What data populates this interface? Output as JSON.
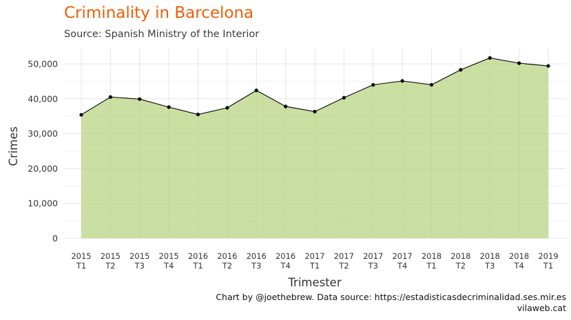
{
  "colors": {
    "title": "#f25c05",
    "area_fill": "#b5d27a",
    "line": "#000000",
    "grid": "#e6e6e6"
  },
  "chart_data": {
    "type": "area",
    "title": "Criminality in Barcelona",
    "subtitle": "Source: Spanish Ministry of the Interior",
    "xlabel": "Trimester",
    "ylabel": "Crimes",
    "ylim": [
      0,
      54000
    ],
    "yticks": [
      0,
      10000,
      20000,
      30000,
      40000,
      50000
    ],
    "ytick_labels": [
      "0",
      "10,000",
      "20,000",
      "30,000",
      "40,000",
      "50,000"
    ],
    "grid": true,
    "categories": [
      {
        "year": "2015",
        "quarter": "T1"
      },
      {
        "year": "2015",
        "quarter": "T2"
      },
      {
        "year": "2015",
        "quarter": "T3"
      },
      {
        "year": "2015",
        "quarter": "T4"
      },
      {
        "year": "2016",
        "quarter": "T1"
      },
      {
        "year": "2016",
        "quarter": "T2"
      },
      {
        "year": "2016",
        "quarter": "T3"
      },
      {
        "year": "2016",
        "quarter": "T4"
      },
      {
        "year": "2017",
        "quarter": "T1"
      },
      {
        "year": "2017",
        "quarter": "T2"
      },
      {
        "year": "2017",
        "quarter": "T3"
      },
      {
        "year": "2017",
        "quarter": "T4"
      },
      {
        "year": "2018",
        "quarter": "T1"
      },
      {
        "year": "2018",
        "quarter": "T2"
      },
      {
        "year": "2018",
        "quarter": "T3"
      },
      {
        "year": "2018",
        "quarter": "T4"
      },
      {
        "year": "2019",
        "quarter": "T1"
      }
    ],
    "values": [
      35400,
      40500,
      39900,
      37600,
      35500,
      37400,
      42400,
      37800,
      36300,
      40300,
      44000,
      45100,
      44000,
      48300,
      51700,
      50200,
      49400
    ],
    "caption_lines": [
      "Chart by @joethebrew. Data source: https://estadisticasdecriminalidad.ses.mir.es",
      "vilaweb.cat"
    ]
  }
}
